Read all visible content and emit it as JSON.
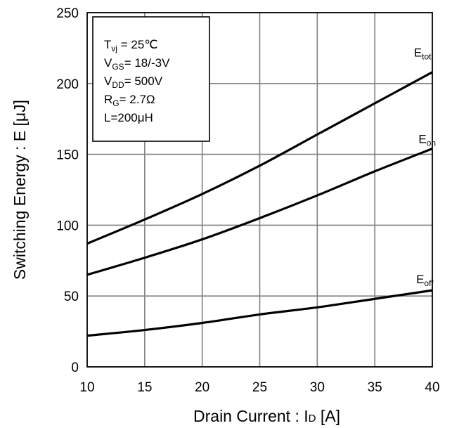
{
  "chart_data": {
    "type": "line",
    "xlabel": "Drain Current : I",
    "xlabel_sub": "D",
    "xlabel_unit": " [A]",
    "ylabel": "Switching Energy : E [μJ]",
    "xlim": [
      10,
      40
    ],
    "ylim": [
      0,
      250
    ],
    "xticks": [
      10,
      15,
      20,
      25,
      30,
      35,
      40
    ],
    "yticks": [
      0,
      50,
      100,
      150,
      200,
      250
    ],
    "grid": true,
    "x": [
      10,
      15,
      20,
      25,
      30,
      35,
      40
    ],
    "series": [
      {
        "name": "E",
        "name_sub": "tot",
        "values": [
          87,
          104,
          122,
          142,
          164,
          186,
          208
        ],
        "label_at": [
          38.4,
          219
        ]
      },
      {
        "name": "E",
        "name_sub": "on",
        "values": [
          65,
          77,
          90,
          105,
          121,
          138,
          154
        ],
        "label_at": [
          38.8,
          158
        ]
      },
      {
        "name": "E",
        "name_sub": "off",
        "values": [
          22,
          26,
          31,
          37,
          42,
          48,
          54
        ],
        "label_at": [
          38.6,
          59
        ]
      }
    ],
    "conditions": [
      {
        "main": "T",
        "sub": "vj",
        "rest": " = 25℃"
      },
      {
        "main": "V",
        "sub": "GS",
        "rest": "= 18/-3V"
      },
      {
        "main": "V",
        "sub": "DD",
        "rest": "= 500V"
      },
      {
        "main": "R",
        "sub": "G",
        "rest": "= 2.7Ω"
      },
      {
        "main": "L=200μH",
        "sub": "",
        "rest": ""
      }
    ],
    "colors": {
      "line": "#000000",
      "grid": "#808080",
      "axis": "#000000"
    }
  }
}
